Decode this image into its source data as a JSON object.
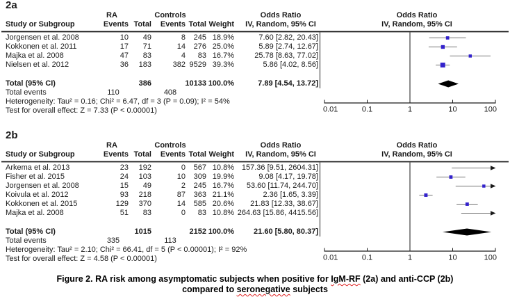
{
  "colors": {
    "background": "#ffffff",
    "text": "#1a1a1a",
    "rule": "#1a1a1a",
    "axis": "#1a1a1a",
    "ci_line": "#707070",
    "square": "#3322cc",
    "summary_diamond": "#000000",
    "spellcheck_underline": "#e02020"
  },
  "caption": {
    "lines": [
      {
        "parts": [
          {
            "text": "Figure 2. RA risk among asymptomatic subjects when positive for "
          },
          {
            "text": "IgM-RF",
            "misspelled": true
          },
          {
            "text": " (2a) and anti-CCP (2b)"
          }
        ]
      },
      {
        "parts": [
          {
            "text": "compared to "
          },
          {
            "text": "seronegative",
            "misspelled": true
          },
          {
            "text": " subjects"
          }
        ]
      }
    ]
  },
  "chart_data": [
    {
      "type": "forest",
      "panel_label": "2a",
      "headers": {
        "group1": "RA",
        "group2": "Controls",
        "odds_ratio": "Odds Ratio",
        "method": "IV, Random, 95% CI",
        "study": "Study or Subgroup",
        "events": "Events",
        "total": "Total",
        "weight": "Weight"
      },
      "axis": {
        "scale": "log",
        "min": 0.01,
        "max": 100,
        "ticks": [
          "0.01",
          "0.1",
          "1",
          "10",
          "100"
        ],
        "tick_values": [
          0.01,
          0.1,
          1,
          10,
          100
        ]
      },
      "studies": [
        {
          "name": "Jorgensen et al. 2008",
          "ra_events": "10",
          "ra_total": "49",
          "c_events": "8",
          "c_total": "245",
          "weight": "18.9%",
          "weight_value": 18.9,
          "or": 7.6,
          "ci_low": 2.82,
          "ci_high": 20.43,
          "or_text": "7.60 [2.82, 20.43]"
        },
        {
          "name": "Kokkonen et al. 2011",
          "ra_events": "17",
          "ra_total": "71",
          "c_events": "14",
          "c_total": "276",
          "weight": "25.0%",
          "weight_value": 25.0,
          "or": 5.89,
          "ci_low": 2.74,
          "ci_high": 12.67,
          "or_text": "5.89 [2.74, 12.67]"
        },
        {
          "name": "Majka et al. 2008",
          "ra_events": "47",
          "ra_total": "83",
          "c_events": "4",
          "c_total": "83",
          "weight": "16.7%",
          "weight_value": 16.7,
          "or": 25.78,
          "ci_low": 8.63,
          "ci_high": 77.02,
          "or_text": "25.78 [8.63, 77.02]"
        },
        {
          "name": "Nielsen et al. 2012",
          "ra_events": "36",
          "ra_total": "183",
          "c_events": "382",
          "c_total": "9529",
          "weight": "39.3%",
          "weight_value": 39.3,
          "or": 5.86,
          "ci_low": 4.02,
          "ci_high": 8.56,
          "or_text": "5.86 [4.02, 8.56]"
        }
      ],
      "total": {
        "label": "Total (95% CI)",
        "ra_total": "386",
        "c_total": "10133",
        "weight": "100.0%",
        "or": 7.89,
        "ci_low": 4.54,
        "ci_high": 13.72,
        "or_text": "7.89 [4.54, 13.72]"
      },
      "total_events": {
        "label": "Total events",
        "ra": "110",
        "controls": "408"
      },
      "heterogeneity": "Heterogeneity: Tau² = 0.16; Chi² = 6.47, df = 3 (P = 0.09); I² = 54%",
      "overall_effect": "Test for overall effect: Z = 7.33 (P < 0.00001)"
    },
    {
      "type": "forest",
      "panel_label": "2b",
      "headers": {
        "group1": "RA",
        "group2": "Controls",
        "odds_ratio": "Odds Ratio",
        "method": "IV, Random, 95% CI",
        "study": "Study or Subgroup",
        "events": "Events",
        "total": "Total",
        "weight": "Weight"
      },
      "axis": {
        "scale": "log",
        "min": 0.01,
        "max": 100,
        "ticks": [
          "0.01",
          "0.1",
          "1",
          "10",
          "100"
        ],
        "tick_values": [
          0.01,
          0.1,
          1,
          10,
          100
        ]
      },
      "studies": [
        {
          "name": "Arkema et al. 2013",
          "ra_events": "23",
          "ra_total": "192",
          "c_events": "0",
          "c_total": "567",
          "weight": "10.8%",
          "weight_value": 10.8,
          "or": 157.36,
          "ci_low": 9.51,
          "ci_high": 2604.31,
          "or_text": "157.36 [9.51, 2604.31]"
        },
        {
          "name": "Fisher et al. 2015",
          "ra_events": "24",
          "ra_total": "103",
          "c_events": "10",
          "c_total": "309",
          "weight": "19.9%",
          "weight_value": 19.9,
          "or": 9.08,
          "ci_low": 4.17,
          "ci_high": 19.78,
          "or_text": "9.08 [4.17, 19.78]"
        },
        {
          "name": "Jorgensen et al. 2008",
          "ra_events": "15",
          "ra_total": "49",
          "c_events": "2",
          "c_total": "245",
          "weight": "16.7%",
          "weight_value": 16.7,
          "or": 53.6,
          "ci_low": 11.74,
          "ci_high": 244.7,
          "or_text": "53.60 [11.74, 244.70]"
        },
        {
          "name": "Koivula et al. 2012",
          "ra_events": "93",
          "ra_total": "218",
          "c_events": "87",
          "c_total": "363",
          "weight": "21.1%",
          "weight_value": 21.1,
          "or": 2.36,
          "ci_low": 1.65,
          "ci_high": 3.39,
          "or_text": "2.36 [1.65, 3.39]"
        },
        {
          "name": "Kokkonen et al. 2015",
          "ra_events": "129",
          "ra_total": "370",
          "c_events": "14",
          "c_total": "585",
          "weight": "20.6%",
          "weight_value": 20.6,
          "or": 21.83,
          "ci_low": 12.33,
          "ci_high": 38.67,
          "or_text": "21.83 [12.33, 38.67]"
        },
        {
          "name": "Majka et al. 2008",
          "ra_events": "51",
          "ra_total": "83",
          "c_events": "0",
          "c_total": "83",
          "weight": "10.8%",
          "weight_value": 10.8,
          "or": 264.63,
          "ci_low": 15.86,
          "ci_high": 4415.56,
          "or_text": "264.63 [15.86, 4415.56]"
        }
      ],
      "total": {
        "label": "Total (95% CI)",
        "ra_total": "1015",
        "c_total": "2152",
        "weight": "100.0%",
        "or": 21.6,
        "ci_low": 5.8,
        "ci_high": 80.37,
        "or_text": "21.60 [5.80, 80.37]"
      },
      "total_events": {
        "label": "Total events",
        "ra": "335",
        "controls": "113"
      },
      "heterogeneity": "Heterogeneity: Tau² = 2.10; Chi² = 66.41, df = 5 (P < 0.00001); I² = 92%",
      "overall_effect": "Test for overall effect: Z = 4.58 (P < 0.00001)"
    }
  ]
}
